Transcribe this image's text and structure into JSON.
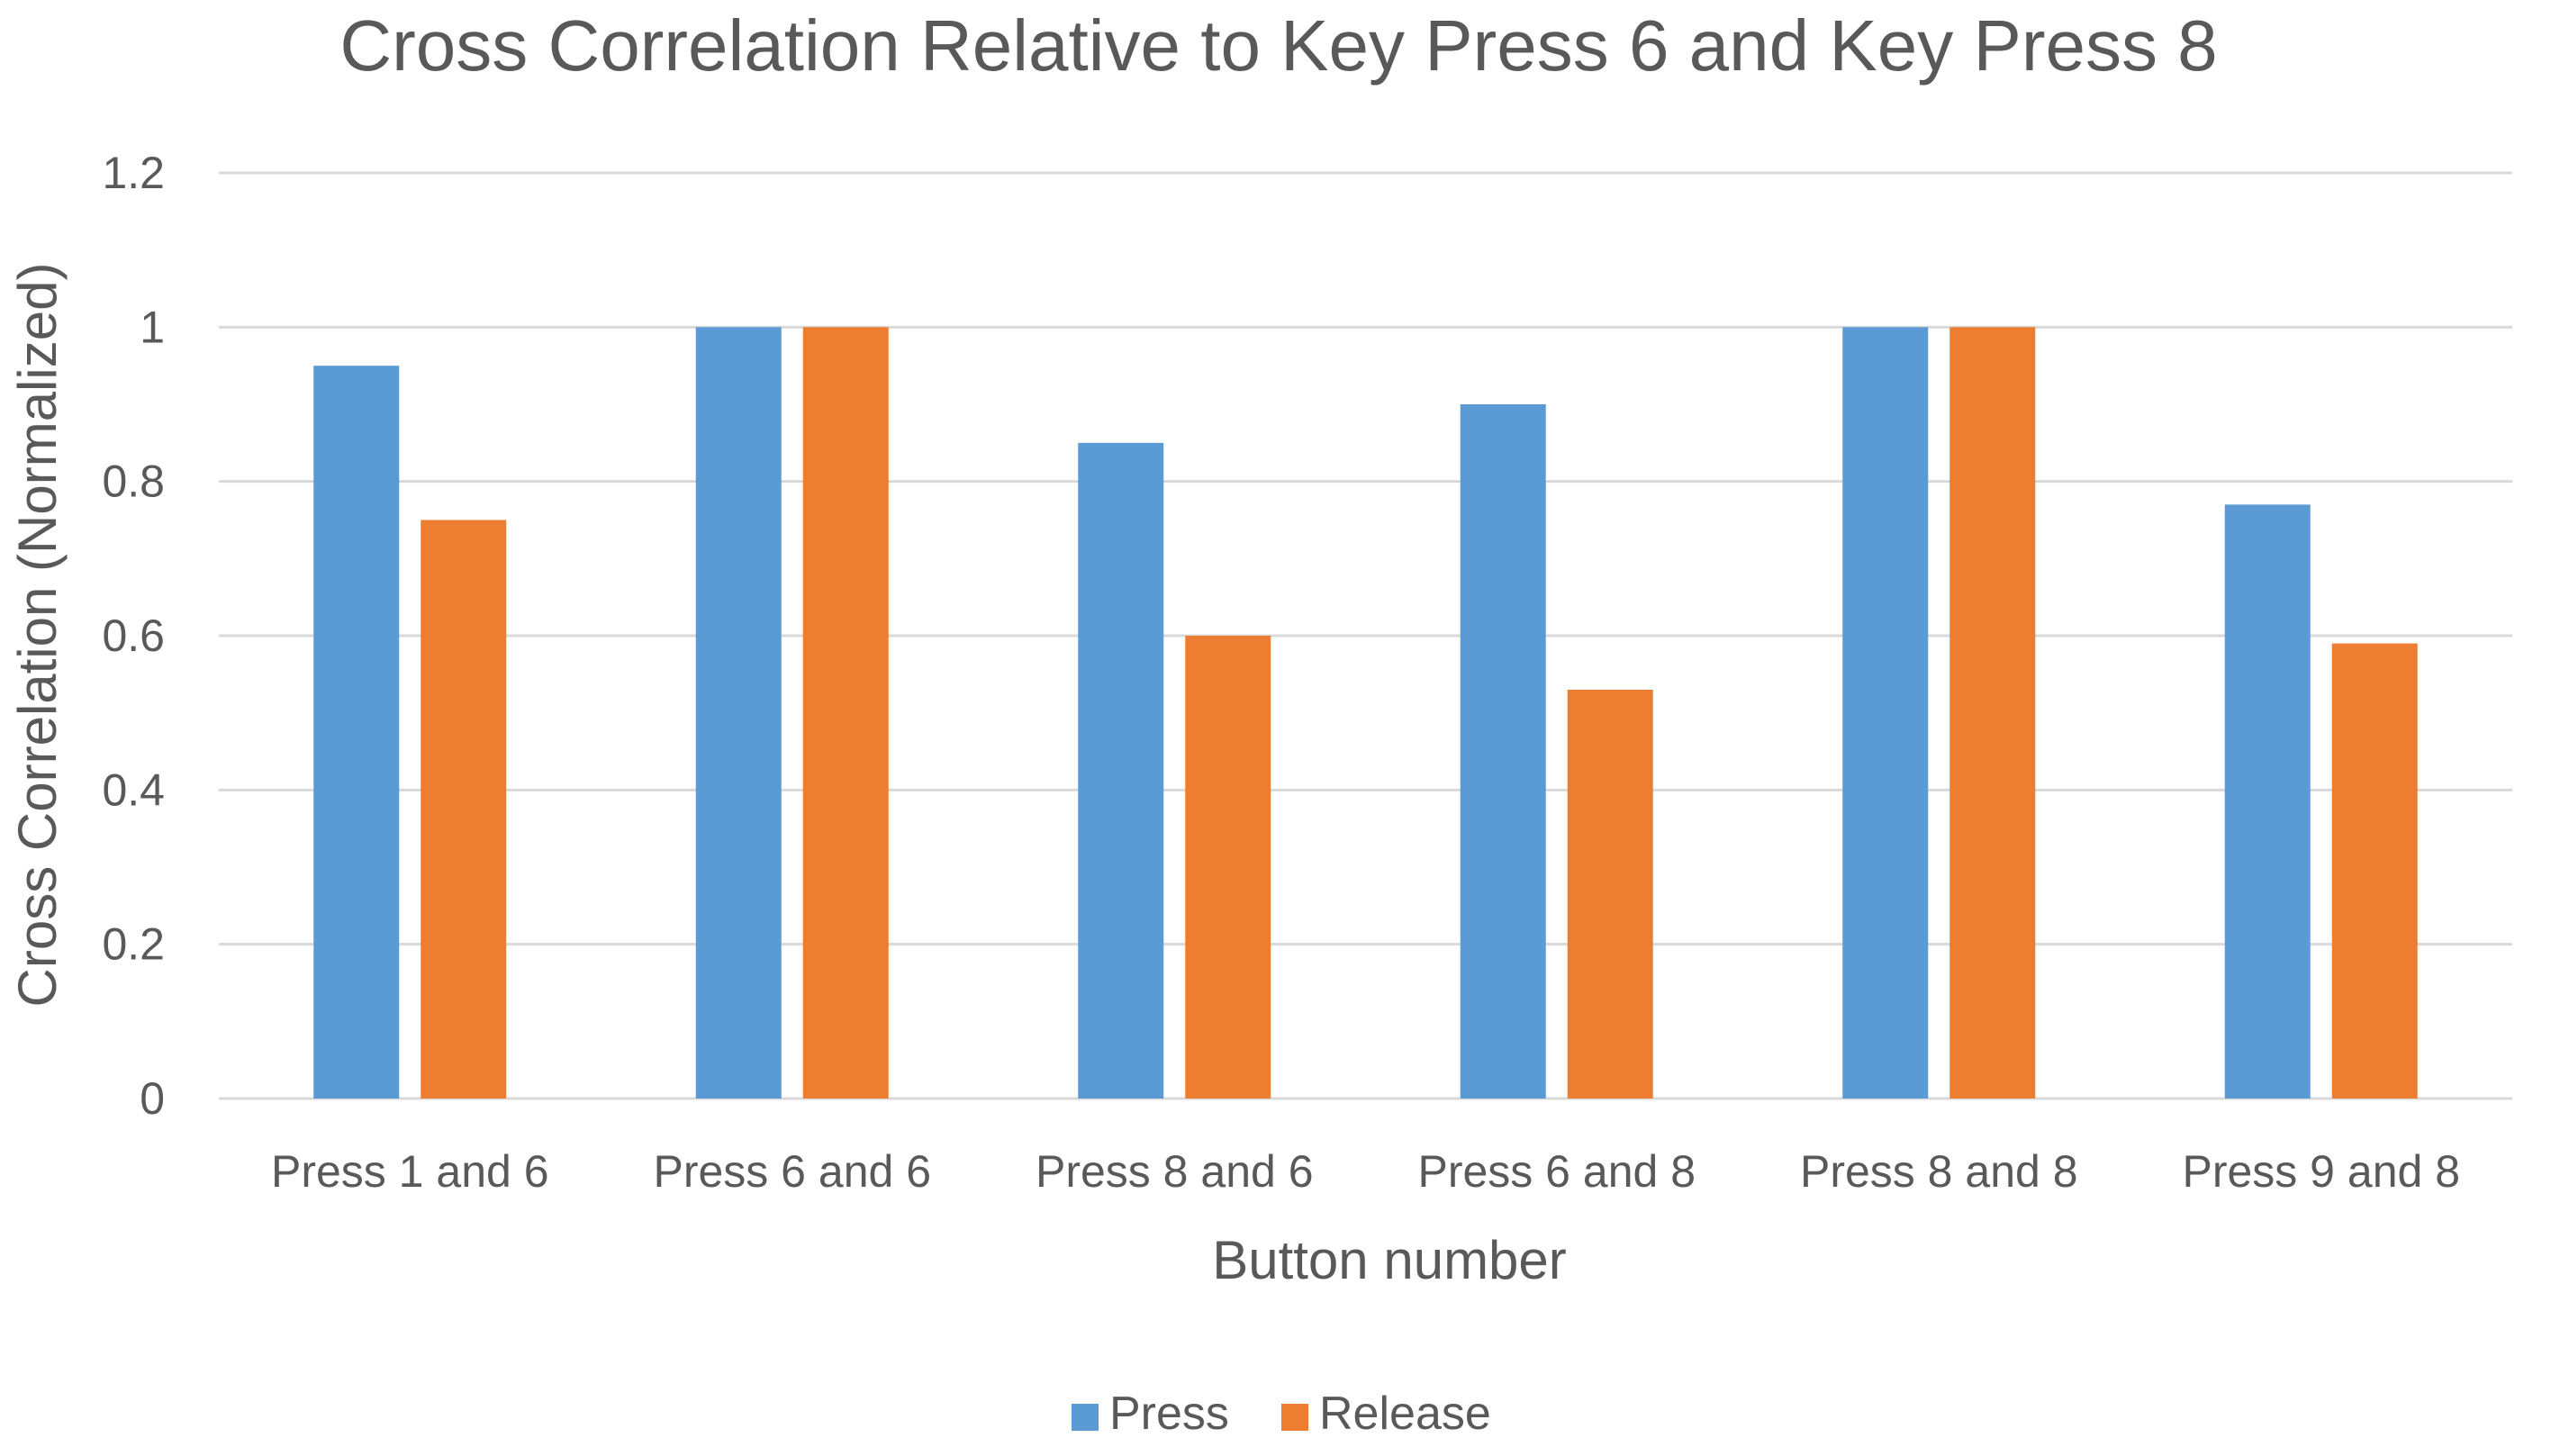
{
  "chart_data": {
    "type": "bar",
    "title": "Cross Correlation Relative to Key Press 6 and Key Press 8",
    "xlabel": "Button number",
    "ylabel": "Cross Correlation (Normalized)",
    "categories": [
      "Press 1 and 6",
      "Press 6 and 6",
      "Press 8 and 6",
      "Press 6 and 8",
      "Press 8 and 8",
      "Press 9 and 8"
    ],
    "series": [
      {
        "name": "Press",
        "color": "#5b9bd5",
        "values": [
          0.95,
          1.0,
          0.85,
          0.9,
          1.0,
          0.77
        ]
      },
      {
        "name": "Release",
        "color": "#ed7d31",
        "values": [
          0.75,
          1.0,
          0.6,
          0.53,
          1.0,
          0.59
        ]
      }
    ],
    "yticks": [
      "0",
      "0.2",
      "0.4",
      "0.6",
      "0.8",
      "1",
      "1.2"
    ],
    "ylim": [
      0,
      1.2
    ],
    "grid": true,
    "legend": "bottom"
  }
}
